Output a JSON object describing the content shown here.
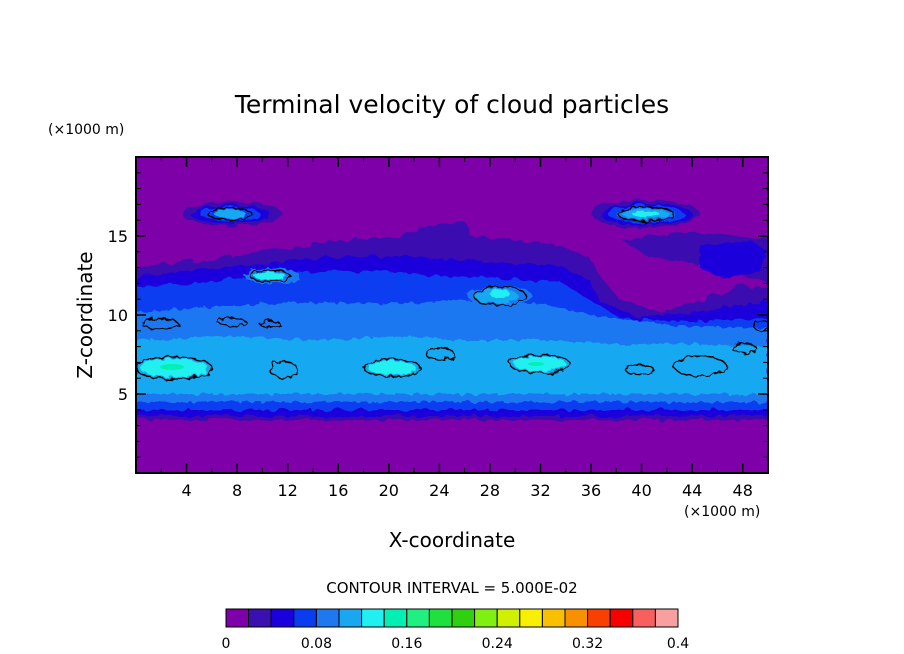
{
  "chart_data": {
    "type": "heatmap",
    "title": "Terminal velocity of cloud particles",
    "xlabel": "X-coordinate",
    "ylabel": "Z-coordinate",
    "x_unit": "(×1000 m)",
    "y_unit": "(×1000 m)",
    "xlim": [
      0,
      50
    ],
    "ylim": [
      0,
      20
    ],
    "x_ticks": [
      4,
      8,
      12,
      16,
      20,
      24,
      28,
      32,
      36,
      40,
      44,
      48
    ],
    "y_ticks": [
      5,
      10,
      15
    ],
    "contour_interval_text": "CONTOUR INTERVAL = 5.000E-02",
    "colorbar": {
      "min": 0,
      "max": 0.4,
      "step": 0.025,
      "tick_labels": [
        "0",
        "0.08",
        "0.16",
        "0.24",
        "0.32",
        "0.4"
      ],
      "tick_values": [
        0,
        0.08,
        0.16,
        0.24,
        0.32,
        0.4
      ],
      "colors": [
        "#7d00a8",
        "#3a10b0",
        "#1a00dc",
        "#0a3cf0",
        "#1e78f0",
        "#19a8f0",
        "#20f0f0",
        "#00f0b4",
        "#20f080",
        "#20e040",
        "#30d010",
        "#80f010",
        "#d0f000",
        "#f8f000",
        "#f8c000",
        "#f89000",
        "#f84000",
        "#f80000",
        "#f86060",
        "#f8a0a0"
      ]
    },
    "levels_present_approx": [
      0,
      0.025,
      0.05,
      0.075,
      0.1,
      0.125,
      0.15,
      0.175
    ]
  }
}
